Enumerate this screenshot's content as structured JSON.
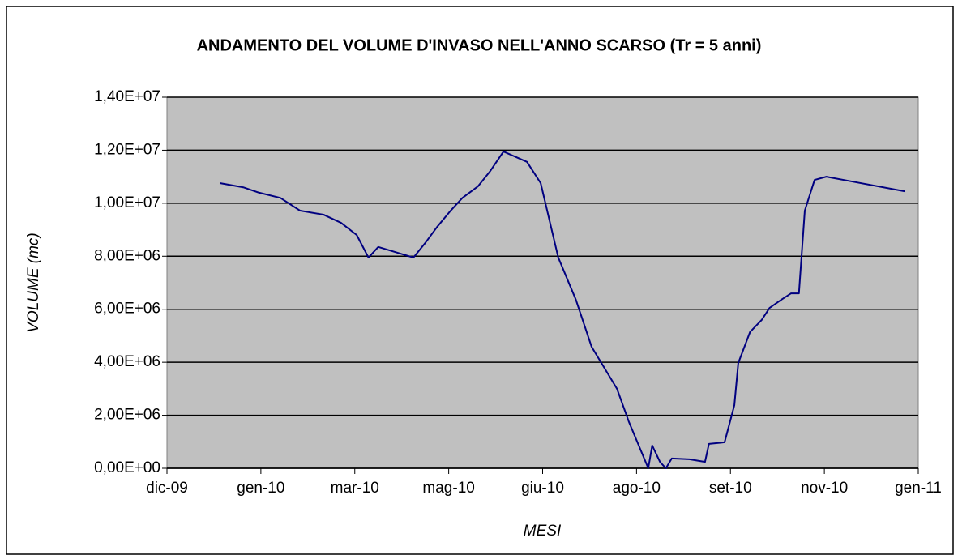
{
  "chart_data": {
    "type": "line",
    "title": "ANDAMENTO DEL VOLUME D'INVASO NELL'ANNO SCARSO (Tr = 5 anni)",
    "x_label": "MESI",
    "y_label": "VOLUME (mc)",
    "xlim": [
      0,
      384
    ],
    "xticks": [
      {
        "value": 0,
        "label": "dic-09"
      },
      {
        "value": 48,
        "label": "gen-10"
      },
      {
        "value": 96,
        "label": "mar-10"
      },
      {
        "value": 144,
        "label": "mag-10"
      },
      {
        "value": 192,
        "label": "giu-10"
      },
      {
        "value": 240,
        "label": "ago-10"
      },
      {
        "value": 288,
        "label": "set-10"
      },
      {
        "value": 336,
        "label": "nov-10"
      },
      {
        "value": 384,
        "label": "gen-11"
      }
    ],
    "ylim": [
      0,
      14000000
    ],
    "yticks": [
      {
        "value": 0,
        "label": "0,00E+00"
      },
      {
        "value": 2000000,
        "label": "2,00E+06"
      },
      {
        "value": 4000000,
        "label": "4,00E+06"
      },
      {
        "value": 6000000,
        "label": "6,00E+06"
      },
      {
        "value": 8000000,
        "label": "8,00E+06"
      },
      {
        "value": 10000000,
        "label": "1,00E+07"
      },
      {
        "value": 12000000,
        "label": "1,20E+07"
      },
      {
        "value": 14000000,
        "label": "1,40E+07"
      }
    ],
    "grid": true,
    "series": [
      {
        "name": "Volume",
        "color": "#000080",
        "x": [
          27,
          39,
          47,
          58,
          68,
          80,
          89,
          97,
          103,
          108,
          118,
          126,
          132,
          138,
          145,
          151,
          159,
          165,
          172,
          184,
          191,
          200,
          209,
          217,
          230,
          236,
          246,
          248,
          252,
          255,
          258,
          267,
          275,
          277,
          285,
          290,
          292,
          298,
          304,
          308,
          314,
          319,
          323,
          326,
          331,
          337,
          348,
          377
        ],
        "values": [
          10760000,
          10600000,
          10400000,
          10200000,
          9720000,
          9570000,
          9260000,
          8800000,
          7950000,
          8350000,
          8130000,
          7950000,
          8500000,
          9100000,
          9720000,
          10200000,
          10640000,
          11190000,
          11950000,
          11560000,
          10760000,
          7950000,
          6360000,
          4590000,
          3000000,
          1770000,
          0,
          860000,
          240000,
          0,
          370000,
          340000,
          240000,
          920000,
          980000,
          2380000,
          3970000,
          5140000,
          5600000,
          6050000,
          6360000,
          6600000,
          6600000,
          9720000,
          10880000,
          11000000,
          10850000,
          10450000
        ]
      }
    ]
  }
}
